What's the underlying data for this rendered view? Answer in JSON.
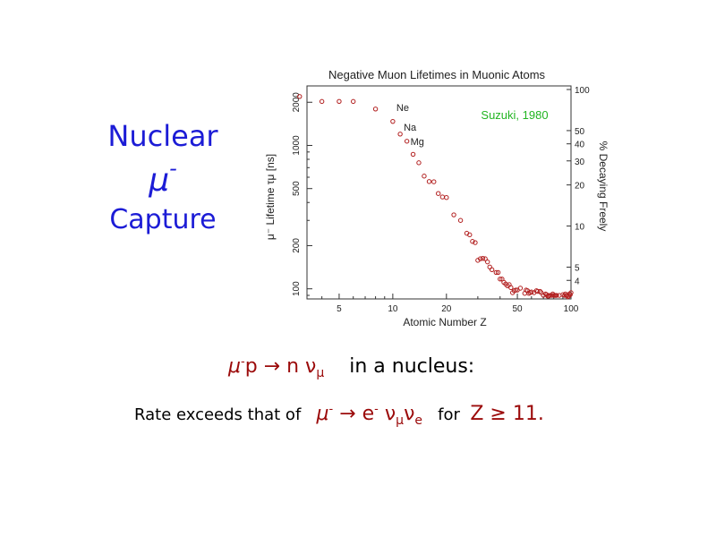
{
  "slide": {
    "title_line1": "Nuclear",
    "title_line2_base": "μ",
    "title_line2_sup": "-",
    "title_line3": "Capture",
    "reaction_mu": "μ",
    "reaction_minus": "-",
    "reaction_rest": "p → n ν",
    "reaction_nu_sub": "μ",
    "reaction_suffix": "in a nucleus:",
    "rate_prefix": "Rate exceeds that of",
    "decay_mu": "μ",
    "decay_minus1": "-",
    "decay_arrow_e": " → e",
    "decay_minus2": "-",
    "decay_nu1": " ν",
    "decay_nu1_sub": "μ",
    "decay_nu2": "ν",
    "decay_nu2_sub": "e",
    "for_text": "for",
    "condition": "Z ≥ 11."
  },
  "colors": {
    "title": "#1c1cd6",
    "reaction": "#9b0a0a",
    "marker": "#b22020",
    "source": "#22b522"
  },
  "chart_data": {
    "type": "scatter",
    "title": "Negative Muon Lifetimes in Muonic Atoms",
    "xlabel": "Atomic Number  Z",
    "ylabel": "μ⁻ Lifetime  τμ [ns]",
    "y2label": "% Decaying Freely",
    "x_scale": "log",
    "y_scale": "log",
    "xlim": [
      3.3,
      100
    ],
    "ylim": [
      85,
      2600
    ],
    "x_ticks": [
      5,
      10,
      20,
      50,
      100
    ],
    "y_ticks": [
      100,
      200,
      500,
      1000,
      2000
    ],
    "y2_ticks": [
      4,
      5,
      10,
      20,
      30,
      40,
      50,
      100
    ],
    "source_label": "Suzuki, 1980",
    "annotations": [
      {
        "text": "Ne",
        "x": 10,
        "y": 1640
      },
      {
        "text": "Na",
        "x": 11,
        "y": 1200
      },
      {
        "text": "Mg",
        "x": 12,
        "y": 950
      }
    ],
    "points": [
      [
        3,
        2195
      ],
      [
        4,
        2026
      ],
      [
        5,
        2028
      ],
      [
        6,
        2026
      ],
      [
        8,
        1795
      ],
      [
        10,
        1470
      ],
      [
        11,
        1200
      ],
      [
        12,
        1070
      ],
      [
        13,
        867
      ],
      [
        14,
        757
      ],
      [
        15,
        611
      ],
      [
        16,
        560
      ],
      [
        17,
        558
      ],
      [
        18,
        462
      ],
      [
        19,
        437
      ],
      [
        20,
        433
      ],
      [
        22,
        328
      ],
      [
        24,
        300
      ],
      [
        26,
        244
      ],
      [
        27,
        238
      ],
      [
        28,
        214
      ],
      [
        29,
        210
      ],
      [
        30,
        158
      ],
      [
        31,
        162
      ],
      [
        32,
        163
      ],
      [
        33,
        162
      ],
      [
        34,
        154
      ],
      [
        35,
        142
      ],
      [
        36,
        136
      ],
      [
        38,
        130
      ],
      [
        39,
        130
      ],
      [
        40,
        117
      ],
      [
        41,
        117
      ],
      [
        42,
        111
      ],
      [
        43,
        108
      ],
      [
        44,
        105
      ],
      [
        45,
        107
      ],
      [
        46,
        102
      ],
      [
        47,
        94
      ],
      [
        48,
        97
      ],
      [
        49,
        98
      ],
      [
        50,
        98
      ],
      [
        52,
        101
      ],
      [
        55,
        93
      ],
      [
        56,
        98
      ],
      [
        57,
        97
      ],
      [
        58,
        93
      ],
      [
        59,
        94
      ],
      [
        60,
        95
      ],
      [
        62,
        94
      ],
      [
        64,
        97
      ],
      [
        65,
        96
      ],
      [
        67,
        96
      ],
      [
        68,
        94
      ],
      [
        70,
        90
      ],
      [
        72,
        92
      ],
      [
        73,
        91
      ],
      [
        74,
        89
      ],
      [
        75,
        89
      ],
      [
        76,
        90
      ],
      [
        78,
        90
      ],
      [
        79,
        92
      ],
      [
        80,
        90
      ],
      [
        81,
        90
      ],
      [
        82,
        90
      ],
      [
        83,
        90
      ],
      [
        86,
        90
      ],
      [
        90,
        91
      ],
      [
        92,
        90
      ],
      [
        93,
        92
      ],
      [
        94,
        90
      ],
      [
        95,
        90
      ],
      [
        96,
        88
      ],
      [
        97,
        89
      ],
      [
        98,
        92
      ],
      [
        99,
        91
      ],
      [
        100,
        94
      ]
    ]
  }
}
